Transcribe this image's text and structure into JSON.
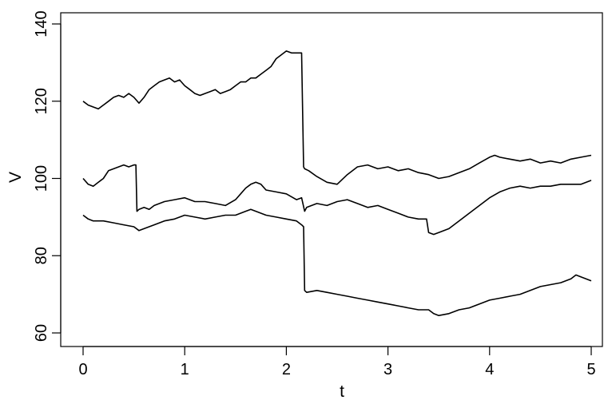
{
  "chart_data": {
    "type": "line",
    "title": "",
    "xlabel": "t",
    "ylabel": "V",
    "xlim": [
      0,
      5
    ],
    "ylim": [
      60,
      140
    ],
    "grid": false,
    "legend": "none",
    "x_ticks": [
      "0",
      "1",
      "2",
      "3",
      "4",
      "5"
    ],
    "y_ticks": [
      "60",
      "80",
      "100",
      "120",
      "140"
    ],
    "line_color": "#000000",
    "series": [
      {
        "x": [
          0,
          0.05,
          0.1,
          0.15,
          0.2,
          0.25,
          0.3,
          0.35,
          0.4,
          0.45,
          0.5,
          0.55,
          0.6,
          0.65,
          0.7,
          0.75,
          0.8,
          0.85,
          0.9,
          0.95,
          1.0,
          1.05,
          1.1,
          1.15,
          1.2,
          1.25,
          1.3,
          1.35,
          1.4,
          1.45,
          1.5,
          1.55,
          1.6,
          1.65,
          1.7,
          1.75,
          1.8,
          1.85,
          1.9,
          1.95,
          2.0,
          2.05,
          2.1,
          2.15,
          2.17,
          2.18,
          2.22,
          2.3,
          2.4,
          2.5,
          2.6,
          2.7,
          2.8,
          2.9,
          3.0,
          3.1,
          3.2,
          3.3,
          3.4,
          3.5,
          3.6,
          3.7,
          3.8,
          3.9,
          4.0,
          4.05,
          4.1,
          4.2,
          4.3,
          4.4,
          4.5,
          4.6,
          4.7,
          4.8,
          4.9,
          5.0
        ],
        "values": [
          120,
          119,
          118.5,
          118,
          119,
          120,
          121,
          121.5,
          121,
          122,
          121,
          119.5,
          121,
          123,
          124,
          125,
          125.5,
          126,
          125,
          125.5,
          124,
          123,
          122,
          121.5,
          122,
          122.5,
          123,
          122,
          122.5,
          123,
          124,
          125,
          125,
          126,
          126,
          127,
          128,
          129,
          131,
          132,
          133,
          132.5,
          132.5,
          132.5,
          103,
          102.5,
          102,
          100.5,
          99,
          98.5,
          101,
          103,
          103.5,
          102.5,
          103,
          102,
          102.5,
          101.5,
          101,
          100,
          100.5,
          101.5,
          102.5,
          104,
          105.5,
          106,
          105.5,
          105,
          104.5,
          105,
          104,
          104.5,
          104,
          105,
          105.5,
          106
        ]
      },
      {
        "x": [
          0,
          0.05,
          0.1,
          0.15,
          0.2,
          0.25,
          0.3,
          0.35,
          0.4,
          0.45,
          0.5,
          0.52,
          0.53,
          0.55,
          0.6,
          0.65,
          0.7,
          0.8,
          0.9,
          1.0,
          1.1,
          1.2,
          1.3,
          1.4,
          1.5,
          1.55,
          1.6,
          1.65,
          1.7,
          1.75,
          1.8,
          1.9,
          2.0,
          2.1,
          2.15,
          2.18,
          2.2,
          2.3,
          2.4,
          2.5,
          2.6,
          2.7,
          2.8,
          2.9,
          3.0,
          3.1,
          3.2,
          3.3,
          3.38,
          3.4,
          3.45,
          3.5,
          3.6,
          3.7,
          3.8,
          3.9,
          4.0,
          4.1,
          4.2,
          4.3,
          4.4,
          4.5,
          4.6,
          4.7,
          4.8,
          4.9,
          5.0
        ],
        "values": [
          100,
          98.5,
          98,
          99,
          100,
          102,
          102.5,
          103,
          103.5,
          103,
          103.5,
          103.5,
          91.5,
          92,
          92.5,
          92,
          93,
          94,
          94.5,
          95,
          94,
          94,
          93.5,
          93,
          94.5,
          96,
          97.5,
          98.5,
          99,
          98.5,
          97,
          96.5,
          96,
          94.5,
          95,
          91.5,
          92.5,
          93.5,
          93,
          94,
          94.5,
          93.5,
          92.5,
          93,
          92,
          91,
          90,
          89.5,
          89.5,
          86,
          85.5,
          86,
          87,
          89,
          91,
          93,
          95,
          96.5,
          97.5,
          98,
          97.5,
          98,
          98,
          98.5,
          98.5,
          98.5,
          99.5
        ]
      },
      {
        "x": [
          0,
          0.05,
          0.1,
          0.2,
          0.3,
          0.4,
          0.5,
          0.55,
          0.6,
          0.7,
          0.8,
          0.9,
          1.0,
          1.1,
          1.2,
          1.3,
          1.4,
          1.5,
          1.6,
          1.65,
          1.7,
          1.8,
          1.9,
          2.0,
          2.1,
          2.15,
          2.17,
          2.18,
          2.2,
          2.3,
          2.4,
          2.5,
          2.6,
          2.7,
          2.8,
          2.9,
          3.0,
          3.1,
          3.2,
          3.3,
          3.4,
          3.45,
          3.5,
          3.6,
          3.7,
          3.8,
          3.9,
          4.0,
          4.1,
          4.2,
          4.3,
          4.4,
          4.5,
          4.6,
          4.7,
          4.8,
          4.85,
          4.9,
          5.0
        ],
        "values": [
          90.5,
          89.5,
          89,
          89,
          88.5,
          88,
          87.5,
          86.5,
          87,
          88,
          89,
          89.5,
          90.5,
          90,
          89.5,
          90,
          90.5,
          90.5,
          91.5,
          92,
          91.5,
          90.5,
          90,
          89.5,
          89,
          88,
          87.5,
          71,
          70.5,
          71,
          70.5,
          70,
          69.5,
          69,
          68.5,
          68,
          67.5,
          67,
          66.5,
          66,
          66,
          65,
          64.5,
          65,
          66,
          66.5,
          67.5,
          68.5,
          69,
          69.5,
          70,
          71,
          72,
          72.5,
          73,
          74,
          75,
          74.5,
          73.5
        ]
      }
    ]
  }
}
